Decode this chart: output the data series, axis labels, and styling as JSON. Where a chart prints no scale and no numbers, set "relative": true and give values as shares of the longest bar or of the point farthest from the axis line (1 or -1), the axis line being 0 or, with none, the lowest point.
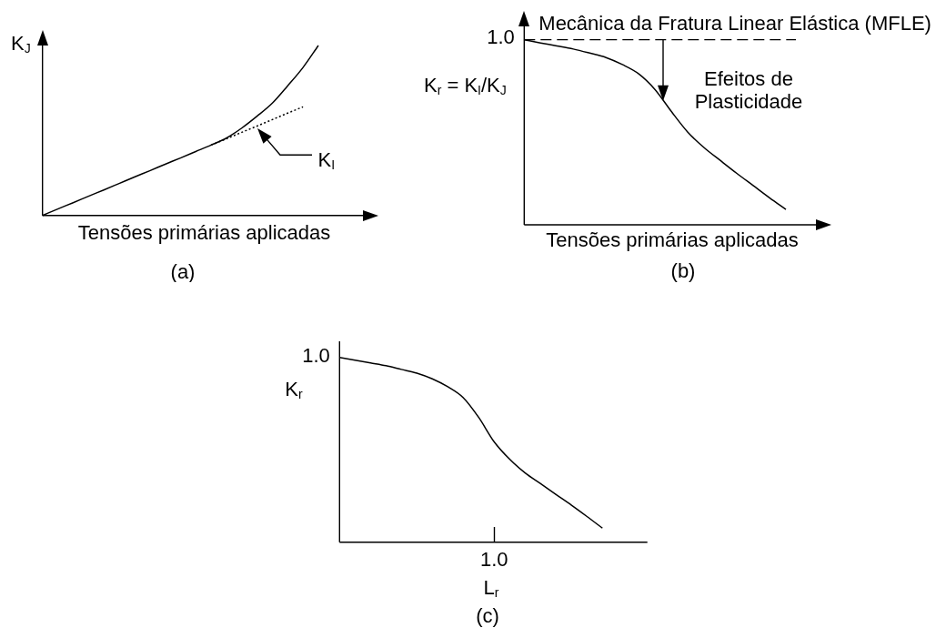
{
  "chart_data": [
    {
      "type": "line",
      "title": "(a)",
      "xlabel": "Tensões primárias aplicadas",
      "ylabel": "K$_{J}$",
      "relative": true,
      "categories": [
        null,
        null,
        null,
        null,
        null,
        null,
        null,
        null,
        null,
        null,
        null,
        null,
        null,
        null,
        null,
        null,
        null,
        null,
        null
      ],
      "series": [
        {
          "color": "#000000",
          "values": [
            0,
            0.038,
            0.075,
            0.113,
            0.15,
            0.188,
            0.226,
            0.263,
            0.301,
            0.338,
            0.376,
            0.414,
            0.455,
            0.514,
            0.584,
            0.661,
            0.763,
            0.871,
            1
          ]
        },
        {
          "name": "K$_{I}$",
          "color": "#000000",
          "line_style": "dotted",
          "values": [
            null,
            null,
            null,
            null,
            null,
            null,
            null,
            null,
            null,
            null,
            null,
            0.414,
            0.451,
            0.489,
            0.526,
            0.564,
            0.602,
            0.639,
            null
          ]
        }
      ]
    },
    {
      "type": "line",
      "title": "(b)",
      "xlabel": "Tensões primárias aplicadas",
      "ylabel": "K$_{r}$ = K$_{I}$/K$_{J}$",
      "relative": true,
      "categories": [
        null,
        null,
        null,
        null,
        null,
        null,
        null,
        null,
        null,
        null,
        null,
        null,
        null,
        null,
        null,
        null,
        null
      ],
      "series": [
        {
          "color": "#000000",
          "values": [
            1,
            0.983,
            0.967,
            0.95,
            0.928,
            0.904,
            0.866,
            0.816,
            0.731,
            0.612,
            0.501,
            0.417,
            0.347,
            0.278,
            0.212,
            0.146,
            0.083
          ]
        }
      ],
      "ref_lines": [
        {
          "axis": "y",
          "value": 1,
          "label": "Mecânica da Fratura Linear Elástica (MFLE)",
          "color": "#000000",
          "line_style": "dashed"
        }
      ],
      "annotations": [
        "1.0",
        "Efeitos de\nPlasticidade"
      ]
    },
    {
      "type": "line",
      "title": "(c)",
      "xlabel": "L$_{r}$",
      "ylabel": "K$_{r}$",
      "relative": true,
      "categories": [
        null,
        null,
        null,
        null,
        null,
        null,
        null,
        null,
        null,
        null,
        null,
        null,
        null,
        null,
        null,
        null,
        null,
        null
      ],
      "series": [
        {
          "color": "#000000",
          "values": [
            1,
            0.985,
            0.97,
            0.955,
            0.935,
            0.915,
            0.884,
            0.841,
            0.782,
            0.675,
            0.543,
            0.449,
            0.375,
            0.317,
            0.258,
            0.2,
            0.139,
            0.076
          ]
        }
      ],
      "annotations": [
        "1.0",
        "1.0"
      ]
    }
  ]
}
